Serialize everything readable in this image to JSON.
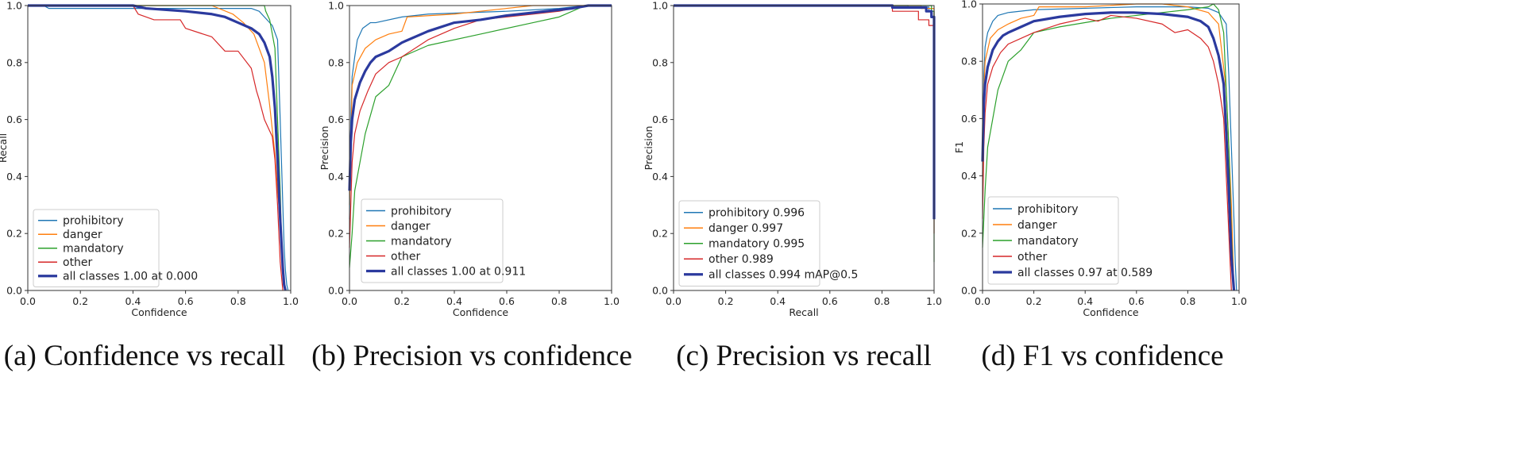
{
  "colors": {
    "prohibitory": "#1f77b4",
    "danger": "#ff7f0e",
    "mandatory": "#2ca02c",
    "other": "#d62728",
    "all": "#2b3a9e"
  },
  "chart_data": [
    {
      "type": "line",
      "caption": "(a) Confidence vs recall",
      "xlabel": "Confidence",
      "ylabel": "Recall",
      "xlim": [
        0,
        1
      ],
      "ylim": [
        0,
        1
      ],
      "xticks": [
        "0.0",
        "0.2",
        "0.4",
        "0.6",
        "0.8",
        "1.0"
      ],
      "yticks": [
        "0.0",
        "0.2",
        "0.4",
        "0.6",
        "0.8",
        "1.0"
      ],
      "legend": "lower-left",
      "series": [
        {
          "key": "prohibitory",
          "name": "prohibitory",
          "x": [
            0,
            0.06,
            0.08,
            0.4,
            0.85,
            0.88,
            0.9,
            0.93,
            0.95,
            0.96,
            0.97,
            0.975,
            0.98,
            0.985,
            0.99
          ],
          "y": [
            1,
            1,
            0.99,
            0.99,
            0.99,
            0.98,
            0.96,
            0.93,
            0.88,
            0.6,
            0.3,
            0.15,
            0.07,
            0.02,
            0
          ]
        },
        {
          "key": "danger",
          "name": "danger",
          "x": [
            0,
            0.7,
            0.78,
            0.82,
            0.86,
            0.9,
            0.92,
            0.94,
            0.95,
            0.96,
            0.965,
            0.97,
            0.975,
            0.98
          ],
          "y": [
            1,
            1,
            0.97,
            0.94,
            0.9,
            0.8,
            0.65,
            0.48,
            0.35,
            0.25,
            0.15,
            0.08,
            0.03,
            0
          ]
        },
        {
          "key": "mandatory",
          "name": "mandatory",
          "x": [
            0,
            0.9,
            0.905,
            0.92,
            0.94,
            0.95,
            0.96,
            0.965,
            0.97,
            0.975,
            0.98
          ],
          "y": [
            1,
            1,
            0.98,
            0.95,
            0.85,
            0.6,
            0.35,
            0.18,
            0.08,
            0.02,
            0
          ]
        },
        {
          "key": "other",
          "name": "other",
          "x": [
            0,
            0.4,
            0.42,
            0.48,
            0.58,
            0.6,
            0.7,
            0.75,
            0.8,
            0.85,
            0.87,
            0.88,
            0.9,
            0.92,
            0.93,
            0.94,
            0.95,
            0.96,
            0.97
          ],
          "y": [
            1,
            1,
            0.97,
            0.95,
            0.95,
            0.92,
            0.89,
            0.84,
            0.84,
            0.78,
            0.7,
            0.67,
            0.6,
            0.56,
            0.54,
            0.46,
            0.3,
            0.1,
            0
          ]
        },
        {
          "key": "all",
          "name": "all classes 1.00 at 0.000",
          "bold": true,
          "x": [
            0,
            0.4,
            0.45,
            0.6,
            0.7,
            0.75,
            0.8,
            0.85,
            0.88,
            0.9,
            0.92,
            0.93,
            0.94,
            0.95,
            0.96,
            0.97,
            0.975,
            0.98
          ],
          "y": [
            1,
            1,
            0.99,
            0.98,
            0.97,
            0.96,
            0.94,
            0.92,
            0.9,
            0.87,
            0.82,
            0.75,
            0.64,
            0.46,
            0.25,
            0.08,
            0.02,
            0
          ]
        }
      ]
    },
    {
      "type": "line",
      "caption": "(b) Precision vs confidence",
      "xlabel": "Confidence",
      "ylabel": "Precision",
      "xlim": [
        0,
        1
      ],
      "ylim": [
        0,
        1
      ],
      "xticks": [
        "0.0",
        "0.2",
        "0.4",
        "0.6",
        "0.8",
        "1.0"
      ],
      "yticks": [
        "0.0",
        "0.2",
        "0.4",
        "0.6",
        "0.8",
        "1.0"
      ],
      "legend": "lower-left",
      "series": [
        {
          "key": "prohibitory",
          "name": "prohibitory",
          "x": [
            0,
            0.005,
            0.01,
            0.02,
            0.03,
            0.05,
            0.08,
            0.1,
            0.2,
            0.3,
            0.6,
            0.8,
            0.9,
            1.0
          ],
          "y": [
            0.25,
            0.6,
            0.75,
            0.82,
            0.88,
            0.92,
            0.94,
            0.94,
            0.96,
            0.97,
            0.98,
            0.99,
            1.0,
            1.0
          ]
        },
        {
          "key": "danger",
          "name": "danger",
          "x": [
            0,
            0.01,
            0.03,
            0.06,
            0.1,
            0.15,
            0.2,
            0.22,
            0.4,
            0.6,
            0.7,
            0.8,
            1.0
          ],
          "y": [
            0.3,
            0.72,
            0.8,
            0.85,
            0.88,
            0.9,
            0.91,
            0.96,
            0.97,
            0.99,
            1.0,
            1.0,
            1.0
          ]
        },
        {
          "key": "mandatory",
          "name": "mandatory",
          "x": [
            0,
            0.01,
            0.02,
            0.04,
            0.06,
            0.1,
            0.15,
            0.2,
            0.3,
            0.5,
            0.7,
            0.8,
            0.9,
            1.0
          ],
          "y": [
            0.08,
            0.2,
            0.35,
            0.45,
            0.55,
            0.68,
            0.72,
            0.82,
            0.86,
            0.9,
            0.94,
            0.96,
            1.0,
            1.0
          ]
        },
        {
          "key": "other",
          "name": "other",
          "x": [
            0,
            0.005,
            0.01,
            0.02,
            0.04,
            0.07,
            0.1,
            0.15,
            0.2,
            0.3,
            0.4,
            0.5,
            0.7,
            0.8,
            0.9,
            1.0
          ],
          "y": [
            0.15,
            0.3,
            0.45,
            0.55,
            0.63,
            0.7,
            0.76,
            0.8,
            0.82,
            0.88,
            0.92,
            0.95,
            0.97,
            0.98,
            1.0,
            1.0
          ]
        },
        {
          "key": "all",
          "name": "all classes 1.00 at 0.911",
          "bold": true,
          "x": [
            0,
            0.005,
            0.01,
            0.02,
            0.04,
            0.06,
            0.08,
            0.1,
            0.15,
            0.2,
            0.3,
            0.4,
            0.5,
            0.6,
            0.7,
            0.8,
            0.85,
            0.911,
            1.0
          ],
          "y": [
            0.35,
            0.52,
            0.6,
            0.67,
            0.73,
            0.77,
            0.8,
            0.82,
            0.84,
            0.87,
            0.91,
            0.94,
            0.95,
            0.965,
            0.975,
            0.985,
            0.99,
            1.0,
            1.0
          ]
        }
      ]
    },
    {
      "type": "line",
      "caption": "(c) Precision vs recall",
      "xlabel": "Recall",
      "ylabel": "Precision",
      "xlim": [
        0,
        1
      ],
      "ylim": [
        0,
        1
      ],
      "xticks": [
        "0.0",
        "0.2",
        "0.4",
        "0.6",
        "0.8",
        "1.0"
      ],
      "yticks": [
        "0.0",
        "0.2",
        "0.4",
        "0.6",
        "0.8",
        "1.0"
      ],
      "legend": "lower-left",
      "series": [
        {
          "key": "prohibitory",
          "name": "prohibitory 0.996",
          "x": [
            0,
            0.9,
            0.9,
            0.98,
            0.98,
            1.0,
            1.0
          ],
          "y": [
            1,
            1,
            0.995,
            0.995,
            0.98,
            0.98,
            0.25
          ]
        },
        {
          "key": "danger",
          "name": "danger 0.997",
          "x": [
            0,
            0.95,
            0.95,
            1.0,
            1.0
          ],
          "y": [
            1,
            1,
            0.99,
            0.99,
            0.3
          ]
        },
        {
          "key": "mandatory",
          "name": "mandatory 0.995",
          "x": [
            0,
            0.99,
            0.99,
            1.0,
            1.0
          ],
          "y": [
            1,
            1,
            0.98,
            0.98,
            0.1
          ]
        },
        {
          "key": "other",
          "name": "other 0.989",
          "x": [
            0,
            0.84,
            0.84,
            0.94,
            0.94,
            0.98,
            0.98,
            1.0,
            1.0
          ],
          "y": [
            1,
            1,
            0.98,
            0.98,
            0.95,
            0.95,
            0.93,
            0.93,
            0.2
          ]
        },
        {
          "key": "all",
          "name": "all classes 0.994 mAP@0.5",
          "bold": true,
          "x": [
            0,
            0.84,
            0.84,
            0.97,
            0.97,
            0.99,
            0.99,
            1.0,
            1.0
          ],
          "y": [
            1,
            1,
            0.993,
            0.993,
            0.98,
            0.98,
            0.96,
            0.96,
            0.25
          ]
        }
      ]
    },
    {
      "type": "line",
      "caption": "(d) F1 vs confidence",
      "xlabel": "Confidence",
      "ylabel": "F1",
      "xlim": [
        0,
        1
      ],
      "ylim": [
        0,
        1
      ],
      "xticks": [
        "0.0",
        "0.2",
        "0.4",
        "0.6",
        "0.8",
        "1.0"
      ],
      "yticks": [
        "0.0",
        "0.2",
        "0.4",
        "0.6",
        "0.8",
        "1.0"
      ],
      "legend": "lower-left",
      "series": [
        {
          "key": "prohibitory",
          "name": "prohibitory",
          "x": [
            0,
            0.005,
            0.01,
            0.02,
            0.04,
            0.06,
            0.1,
            0.2,
            0.4,
            0.6,
            0.8,
            0.88,
            0.92,
            0.95,
            0.96,
            0.97,
            0.98,
            0.985,
            0.99
          ],
          "y": [
            0.4,
            0.75,
            0.85,
            0.9,
            0.94,
            0.96,
            0.97,
            0.98,
            0.985,
            0.99,
            0.99,
            0.985,
            0.97,
            0.93,
            0.75,
            0.5,
            0.25,
            0.1,
            0
          ]
        },
        {
          "key": "danger",
          "name": "danger",
          "x": [
            0,
            0.005,
            0.01,
            0.03,
            0.06,
            0.1,
            0.15,
            0.2,
            0.22,
            0.4,
            0.6,
            0.7,
            0.8,
            0.88,
            0.92,
            0.95,
            0.97,
            0.98
          ],
          "y": [
            0.4,
            0.7,
            0.8,
            0.88,
            0.91,
            0.93,
            0.95,
            0.96,
            0.99,
            0.99,
            1.0,
            1.0,
            0.99,
            0.97,
            0.93,
            0.7,
            0.3,
            0
          ]
        },
        {
          "key": "mandatory",
          "name": "mandatory",
          "x": [
            0,
            0.01,
            0.02,
            0.04,
            0.06,
            0.1,
            0.15,
            0.2,
            0.3,
            0.5,
            0.7,
            0.8,
            0.88,
            0.9,
            0.92,
            0.94,
            0.96,
            0.97,
            0.98
          ],
          "y": [
            0.15,
            0.35,
            0.5,
            0.6,
            0.7,
            0.8,
            0.84,
            0.9,
            0.92,
            0.95,
            0.97,
            0.98,
            0.99,
            1.0,
            0.98,
            0.9,
            0.5,
            0.2,
            0
          ]
        },
        {
          "key": "other",
          "name": "other",
          "x": [
            0,
            0.005,
            0.01,
            0.02,
            0.04,
            0.07,
            0.1,
            0.15,
            0.2,
            0.3,
            0.4,
            0.45,
            0.5,
            0.6,
            0.7,
            0.75,
            0.8,
            0.85,
            0.88,
            0.9,
            0.92,
            0.94,
            0.95,
            0.96,
            0.97
          ],
          "y": [
            0.25,
            0.5,
            0.62,
            0.72,
            0.78,
            0.83,
            0.86,
            0.88,
            0.9,
            0.93,
            0.95,
            0.94,
            0.96,
            0.95,
            0.93,
            0.9,
            0.91,
            0.88,
            0.85,
            0.8,
            0.72,
            0.6,
            0.4,
            0.2,
            0
          ]
        },
        {
          "key": "all",
          "name": "all classes 0.97 at 0.589",
          "bold": true,
          "x": [
            0,
            0.005,
            0.01,
            0.02,
            0.04,
            0.06,
            0.08,
            0.1,
            0.15,
            0.2,
            0.3,
            0.4,
            0.5,
            0.589,
            0.7,
            0.8,
            0.85,
            0.88,
            0.9,
            0.92,
            0.94,
            0.95,
            0.96,
            0.97,
            0.98
          ],
          "y": [
            0.45,
            0.65,
            0.72,
            0.78,
            0.84,
            0.87,
            0.89,
            0.9,
            0.92,
            0.94,
            0.955,
            0.965,
            0.97,
            0.97,
            0.965,
            0.955,
            0.94,
            0.92,
            0.88,
            0.82,
            0.72,
            0.55,
            0.35,
            0.12,
            0
          ]
        }
      ]
    }
  ]
}
